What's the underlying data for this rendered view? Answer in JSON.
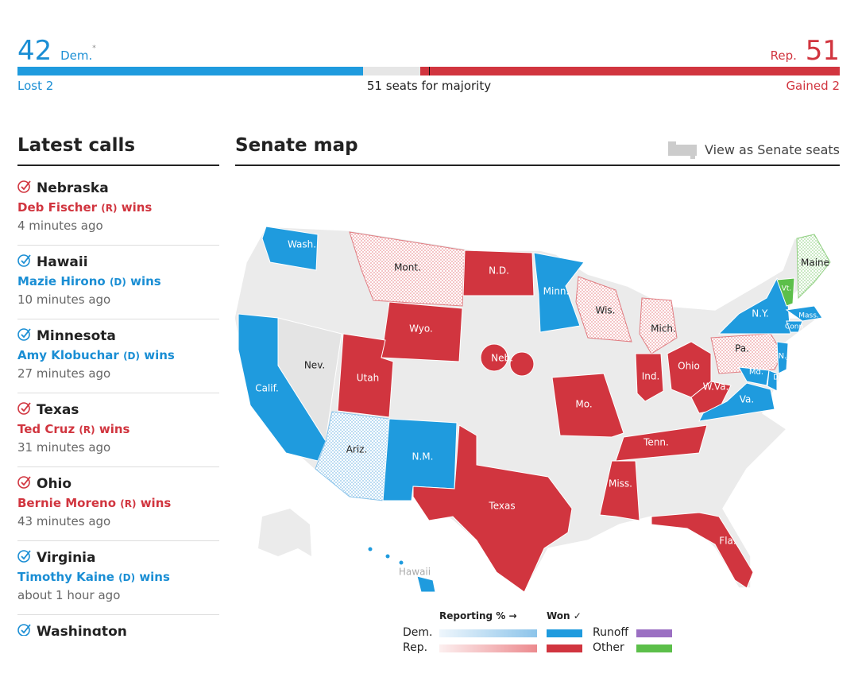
{
  "header": {
    "dem": {
      "count": 42,
      "label": "Dem.",
      "note": "*",
      "change": "Lost 2"
    },
    "rep": {
      "count": 51,
      "label": "Rep.",
      "change": "Gained 2"
    },
    "majority": {
      "seats": 51,
      "text": "seats for majority"
    }
  },
  "latest_calls": {
    "title": "Latest calls",
    "items": [
      {
        "state": "Nebraska",
        "winner": "Deb Fischer",
        "party": "(R)",
        "verb": "wins",
        "time": "4 minutes ago"
      },
      {
        "state": "Hawaii",
        "winner": "Mazie Hirono",
        "party": "(D)",
        "verb": "wins",
        "time": "10 minutes ago"
      },
      {
        "state": "Minnesota",
        "winner": "Amy Klobuchar",
        "party": "(D)",
        "verb": "wins",
        "time": "27 minutes ago"
      },
      {
        "state": "Texas",
        "winner": "Ted Cruz",
        "party": "(R)",
        "verb": "wins",
        "time": "31 minutes ago"
      },
      {
        "state": "Ohio",
        "winner": "Bernie Moreno",
        "party": "(R)",
        "verb": "wins",
        "time": "43 minutes ago"
      },
      {
        "state": "Virginia",
        "winner": "Timothy Kaine",
        "party": "(D)",
        "verb": "wins",
        "time": "about 1 hour ago"
      },
      {
        "state": "Washington"
      }
    ]
  },
  "map": {
    "title": "Senate map",
    "link": "View as Senate seats",
    "states": [
      {
        "label": "Wash.",
        "status": "dem-won"
      },
      {
        "label": "Mont.",
        "status": "rep-reporting"
      },
      {
        "label": "N.D.",
        "status": "rep-won"
      },
      {
        "label": "Minn.",
        "status": "dem-won"
      },
      {
        "label": "Wis.",
        "status": "rep-reporting"
      },
      {
        "label": "Mich.",
        "status": "rep-reporting"
      },
      {
        "label": "Wyo.",
        "status": "rep-won"
      },
      {
        "label": "Nev.",
        "status": "none"
      },
      {
        "label": "Calif.",
        "status": "dem-won"
      },
      {
        "label": "Utah",
        "status": "rep-won"
      },
      {
        "label": "Ariz.",
        "status": "dem-reporting"
      },
      {
        "label": "N.M.",
        "status": "dem-won"
      },
      {
        "label": "Neb.",
        "status": "rep-won"
      },
      {
        "label": "Texas",
        "status": "rep-won"
      },
      {
        "label": "Mo.",
        "status": "rep-won"
      },
      {
        "label": "Ind.",
        "status": "rep-won"
      },
      {
        "label": "Ohio",
        "status": "rep-won"
      },
      {
        "label": "W.Va.",
        "status": "rep-won"
      },
      {
        "label": "Pa.",
        "status": "rep-reporting"
      },
      {
        "label": "N.Y.",
        "status": "dem-won"
      },
      {
        "label": "Vt.",
        "status": "other"
      },
      {
        "label": "Maine",
        "status": "other-reporting"
      },
      {
        "label": "Mass.",
        "status": "dem-won"
      },
      {
        "label": "Conn.",
        "status": "dem-won"
      },
      {
        "label": "N.J.",
        "status": "dem-won"
      },
      {
        "label": "Md.",
        "status": "dem-won"
      },
      {
        "label": "Del.",
        "status": "dem-won"
      },
      {
        "label": "Va.",
        "status": "dem-won"
      },
      {
        "label": "Tenn.",
        "status": "rep-won"
      },
      {
        "label": "Miss.",
        "status": "rep-won"
      },
      {
        "label": "Fla.",
        "status": "rep-won"
      },
      {
        "label": "Hawaii",
        "status": "dem-won"
      }
    ]
  },
  "legend": {
    "reporting": "Reporting % →",
    "won": "Won ✓",
    "dem": "Dem.",
    "rep": "Rep.",
    "runoff": "Runoff",
    "other": "Other"
  }
}
